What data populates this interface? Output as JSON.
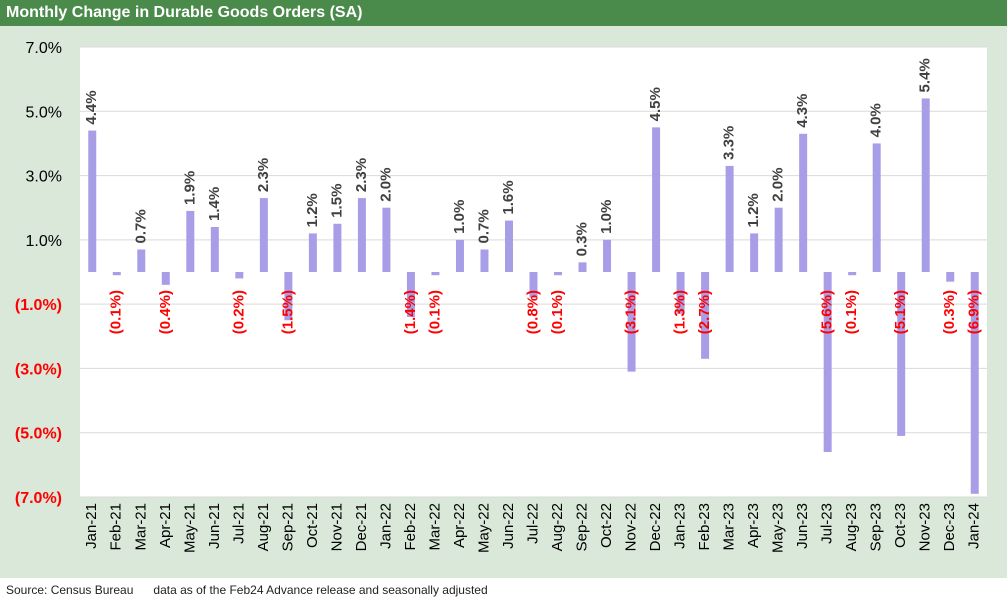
{
  "header": {
    "title": "Monthly Change in Durable Goods Orders (SA)"
  },
  "footer": {
    "source": "Source: Census Bureau      data as of the Feb24 Advance release and seasonally adjusted"
  },
  "colors": {
    "title_bg": "#4a8a4a",
    "chart_bg": "#d9e8d9",
    "bar": "#a89ee8",
    "positive_label": "#404040",
    "negative_label": "#ff0000",
    "grid": "#d9d9d9"
  },
  "chart_data": {
    "type": "bar",
    "title": "Monthly Change in Durable Goods Orders (SA)",
    "xlabel": "",
    "ylabel": "",
    "ylim": [
      -7.0,
      7.0
    ],
    "yticks": [
      7.0,
      5.0,
      3.0,
      1.0,
      -1.0,
      -3.0,
      -5.0,
      -7.0
    ],
    "ytick_labels": [
      "7.0%",
      "5.0%",
      "3.0%",
      "1.0%",
      "(1.0%)",
      "(3.0%)",
      "(5.0%)",
      "(7.0%)"
    ],
    "grid": true,
    "categories": [
      "Jan-21",
      "Feb-21",
      "Mar-21",
      "Apr-21",
      "May-21",
      "Jun-21",
      "Jul-21",
      "Aug-21",
      "Sep-21",
      "Oct-21",
      "Nov-21",
      "Dec-21",
      "Jan-22",
      "Feb-22",
      "Mar-22",
      "Apr-22",
      "May-22",
      "Jun-22",
      "Jul-22",
      "Aug-22",
      "Sep-22",
      "Oct-22",
      "Nov-22",
      "Dec-22",
      "Jan-23",
      "Feb-23",
      "Mar-23",
      "Apr-23",
      "May-23",
      "Jun-23",
      "Jul-23",
      "Aug-23",
      "Sep-23",
      "Oct-23",
      "Nov-23",
      "Dec-23",
      "Jan-24"
    ],
    "values": [
      4.4,
      -0.1,
      0.7,
      -0.4,
      1.9,
      1.4,
      -0.2,
      2.3,
      -1.5,
      1.2,
      1.5,
      2.3,
      2.0,
      -1.4,
      -0.1,
      1.0,
      0.7,
      1.6,
      -0.8,
      -0.1,
      0.3,
      1.0,
      -3.1,
      4.5,
      -1.3,
      -2.7,
      3.3,
      1.2,
      2.0,
      4.3,
      -5.6,
      -0.1,
      4.0,
      -5.1,
      5.4,
      -0.3,
      -6.9
    ],
    "data_labels": [
      "4.4%",
      "(0.1%)",
      "0.7%",
      "(0.4%)",
      "1.9%",
      "1.4%",
      "(0.2%)",
      "2.3%",
      "(1.5%)",
      "1.2%",
      "1.5%",
      "2.3%",
      "2.0%",
      "(1.4%)",
      "(0.1%)",
      "1.0%",
      "0.7%",
      "1.6%",
      "(0.8%)",
      "(0.1%)",
      "0.3%",
      "1.0%",
      "(3.1%)",
      "4.5%",
      "(1.3%)",
      "(2.7%)",
      "3.3%",
      "1.2%",
      "2.0%",
      "4.3%",
      "(5.6%)",
      "(0.1%)",
      "4.0%",
      "(5.1%)",
      "5.4%",
      "(0.3%)",
      "(6.9%)"
    ]
  }
}
